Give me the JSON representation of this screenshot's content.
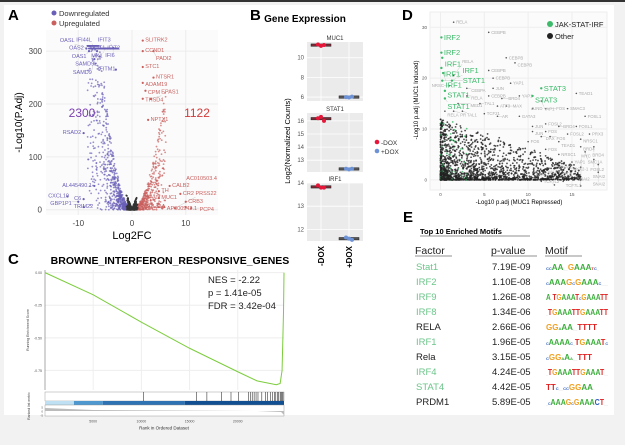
{
  "chart_data": [
    {
      "panel": "A",
      "type": "scatter",
      "xlabel": "Log2FC",
      "ylabel": "-Log10(P.Adj)",
      "xticks": [
        -10,
        0,
        10
      ],
      "yticks": [
        0,
        100,
        200,
        300
      ],
      "xlim": [
        -16,
        16
      ],
      "ylim": [
        -10,
        340
      ],
      "legend": [
        "Downregulated",
        "Upregulated"
      ],
      "legend_placement": "top-left",
      "colors": {
        "Downregulated": "#6a5fb8",
        "Upregulated": "#c9605e",
        "NS": "#333333"
      },
      "counts": {
        "down": "2300",
        "up": "1122"
      },
      "labeled_down": [
        {
          "gene": "IFIT1",
          "x": -4.5,
          "y": 305
        },
        {
          "gene": "IFIT3",
          "x": -3.5,
          "y": 305
        },
        {
          "gene": "MX1",
          "x": -5,
          "y": 305
        },
        {
          "gene": "IFIT2",
          "x": -4,
          "y": 305
        },
        {
          "gene": "IFI6",
          "x": -3.5,
          "y": 306
        },
        {
          "gene": "OAS2",
          "x": -8.5,
          "y": 305
        },
        {
          "gene": "OAS1",
          "x": -8,
          "y": 300
        },
        {
          "gene": "IFI44L",
          "x": -7,
          "y": 305
        },
        {
          "gene": "SAMD9L",
          "x": -6,
          "y": 290
        },
        {
          "gene": "SAMD9",
          "x": -7,
          "y": 285
        },
        {
          "gene": "OASL",
          "x": -6.5,
          "y": 300
        },
        {
          "gene": "IFITM1",
          "x": -3,
          "y": 265
        },
        {
          "gene": "RSAD2",
          "x": -9,
          "y": 145
        },
        {
          "gene": "AL445490.1",
          "x": -7,
          "y": 45
        },
        {
          "gene": "CXCL10",
          "x": -12,
          "y": 25
        },
        {
          "gene": "C6",
          "x": -9,
          "y": 20
        },
        {
          "gene": "GBP1P1",
          "x": -10,
          "y": 15
        },
        {
          "gene": "TRIM22",
          "x": -9,
          "y": 5
        }
      ],
      "labeled_up": [
        {
          "gene": "SLITRK2",
          "x": 2,
          "y": 320
        },
        {
          "gene": "CCND1",
          "x": 2,
          "y": 300
        },
        {
          "gene": "PADI2",
          "x": 4,
          "y": 300
        },
        {
          "gene": "STC1",
          "x": 2,
          "y": 270
        },
        {
          "gene": "NTSR1",
          "x": 4,
          "y": 250
        },
        {
          "gene": "ADAM19",
          "x": 2,
          "y": 240
        },
        {
          "gene": "CPM",
          "x": 2.5,
          "y": 225
        },
        {
          "gene": "THSD4",
          "x": 2,
          "y": 210
        },
        {
          "gene": "EPAS1",
          "x": 3.5,
          "y": 210
        },
        {
          "gene": "NPTX1",
          "x": 3,
          "y": 170
        },
        {
          "gene": "CALB2",
          "x": 7,
          "y": 45
        },
        {
          "gene": "TH",
          "x": 5,
          "y": 35
        },
        {
          "gene": "CR2",
          "x": 9,
          "y": 30
        },
        {
          "gene": "MUC1",
          "x": 5,
          "y": 22
        },
        {
          "gene": "CRB3",
          "x": 10,
          "y": 15
        },
        {
          "gene": "AP000942.1",
          "x": 6,
          "y": 5
        },
        {
          "gene": "AC010503.4",
          "x": 10,
          "y": 5
        },
        {
          "gene": "BCL11A",
          "x": 5,
          "y": 5
        },
        {
          "gene": "PRSS22",
          "x": 8,
          "y": 3
        },
        {
          "gene": "PCP4",
          "x": 11,
          "y": 3
        }
      ]
    },
    {
      "panel": "B",
      "type": "scatter",
      "title": "Gene Expression",
      "ylabel": "Log2(Normalized Counts)",
      "categories": [
        "-DOX",
        "+DOX"
      ],
      "legend": [
        "-DOX",
        "+DOX"
      ],
      "legend_placement": "right",
      "colors": {
        "-DOX": "#e8173a",
        "+DOX": "#6d93d6"
      },
      "facets": [
        {
          "gene": "MUC1",
          "yticks": [
            6,
            8,
            10
          ],
          "ylim": [
            5.6,
            11.6
          ],
          "minus": [
            11.35,
            11.2,
            11.3
          ],
          "plus": [
            6.0,
            5.95,
            6.05
          ]
        },
        {
          "gene": "STAT1",
          "yticks": [
            13,
            14,
            15,
            16
          ],
          "ylim": [
            12.1,
            16.6
          ],
          "minus": [
            16.2,
            16.3,
            16.0
          ],
          "plus": [
            12.35,
            12.3,
            12.35
          ]
        },
        {
          "gene": "IRF1",
          "yticks": [
            12,
            13,
            14
          ],
          "ylim": [
            11.5,
            14.0
          ],
          "minus": [
            13.9,
            13.8,
            13.8
          ],
          "plus": [
            11.65,
            11.6,
            11.55
          ]
        }
      ]
    },
    {
      "panel": "C",
      "type": "line",
      "title": "BROWNE_INTERFERON_RESPONSIVE_GENES",
      "xlabel": "Rank in Ordered Dataset",
      "ylabel": "Running Enrichment Score",
      "ylabel2": "Ranked list metric",
      "xticks": [
        5000,
        10000,
        15000,
        20000
      ],
      "yticks": [
        0.0,
        -0.25,
        -0.5,
        -0.75
      ],
      "ytick_labels": [
        "0.00",
        "-0.25",
        "-0.50",
        "-0.75"
      ],
      "xlim": [
        0,
        24800
      ],
      "ylim": [
        -0.9,
        0.02
      ],
      "line_color": "#7ccd3c",
      "points": [
        [
          0,
          0
        ],
        [
          5000,
          -0.17
        ],
        [
          10000,
          -0.38
        ],
        [
          15000,
          -0.58
        ],
        [
          20000,
          -0.76
        ],
        [
          22000,
          -0.83
        ],
        [
          24000,
          -0.86
        ],
        [
          24400,
          -0.85
        ],
        [
          24600,
          -0.75
        ],
        [
          24750,
          -0.3
        ],
        [
          24800,
          0.0
        ]
      ],
      "hits": [
        10200,
        15700,
        16800,
        18300,
        19300,
        20100,
        21100,
        21300,
        21500,
        21700,
        21900,
        22100,
        22500,
        22900,
        23100,
        23400,
        23600,
        23800,
        23950,
        24100,
        24250,
        24400,
        24500,
        24600,
        24700
      ],
      "stats": {
        "nes": "NES = -2.22",
        "p": "p = 1.41e-05",
        "fdr": "FDR = 3.42e-04"
      },
      "metric_ticks": [
        "5",
        "0",
        "-5"
      ]
    },
    {
      "panel": "D",
      "type": "scatter",
      "xlabel": "-Log10 p.adj (MUC1 Repressed)",
      "ylabel": "-Log10 p.adj (MUC1 Induced)",
      "xticks": [
        0,
        5,
        10,
        15
      ],
      "yticks": [
        0,
        10,
        20,
        30
      ],
      "xlim": [
        -1.2,
        19
      ],
      "ylim": [
        -2,
        33
      ],
      "legend": [
        "JAK-STAT-IRF",
        "Other"
      ],
      "legend_placement": "top-right",
      "colors": {
        "JAK-STAT-IRF": "#3dbb6b",
        "Other": "#222222",
        "label_other": "#aaaaaa"
      },
      "labeled_jak": [
        {
          "tf": "IRF2",
          "x": 0.1,
          "y": 28
        },
        {
          "tf": "IRF2",
          "x": 0.1,
          "y": 25
        },
        {
          "tf": "IRF1",
          "x": 0.2,
          "y": 24
        },
        {
          "tf": "IRF1",
          "x": 0.1,
          "y": 22
        },
        {
          "tf": "IRF1",
          "x": 0.3,
          "y": 21
        },
        {
          "tf": "STAT1",
          "x": 0.2,
          "y": 19.5
        },
        {
          "tf": "IRF1",
          "x": 1.3,
          "y": 19.5
        },
        {
          "tf": "STAT1",
          "x": 0.5,
          "y": 17.5
        },
        {
          "tf": "STAT1",
          "x": 0.5,
          "y": 16
        },
        {
          "tf": "STAT3",
          "x": 11.5,
          "y": 18
        },
        {
          "tf": "STAT3",
          "x": 10.5,
          "y": 16.5
        }
      ],
      "labeled_other": [
        {
          "tf": "RELA",
          "x": 1.5,
          "y": 31
        },
        {
          "tf": "CEBPB",
          "x": 5.5,
          "y": 29
        },
        {
          "tf": "CEBPB",
          "x": 7.5,
          "y": 24
        },
        {
          "tf": "CEBPB",
          "x": 8.5,
          "y": 23
        },
        {
          "tf": "CEBPB",
          "x": 5.5,
          "y": 21.5
        },
        {
          "tf": "RELA",
          "x": 1.5,
          "y": 20.5
        },
        {
          "tf": "CEBPB",
          "x": 6,
          "y": 20
        },
        {
          "tf": "YAP1",
          "x": 8,
          "y": 19
        },
        {
          "tf": "NRSC",
          "x": 1,
          "y": 18.5
        },
        {
          "tf": "CEBPA",
          "x": 3,
          "y": 18
        },
        {
          "tf": "JUN",
          "x": 6,
          "y": 18
        },
        {
          "tf": "RELA",
          "x": 3,
          "y": 16.5
        },
        {
          "tf": "CEBPB",
          "x": 5.5,
          "y": 16.5
        },
        {
          "tf": "BRD4",
          "x": 7,
          "y": 16
        },
        {
          "tf": "YAP1",
          "x": 9,
          "y": 16.5
        },
        {
          "tf": "TEAD1",
          "x": 15.5,
          "y": 17
        },
        {
          "tf": "MED1",
          "x": 2,
          "y": 15
        },
        {
          "tf": "TAL1",
          "x": 4.5,
          "y": 15
        },
        {
          "tf": "ATF3",
          "x": 6.5,
          "y": 14.5
        },
        {
          "tf": "MAX",
          "x": 7.5,
          "y": 14.5
        },
        {
          "tf": "YAP1",
          "x": 11.5,
          "y": 15.5
        },
        {
          "tf": "RELA",
          "x": 0.5,
          "y": 13.5
        },
        {
          "tf": "PR",
          "x": 1.5,
          "y": 13.5
        },
        {
          "tf": "TAL1",
          "x": 2.5,
          "y": 13.5
        },
        {
          "tf": "TCF21",
          "x": 5,
          "y": 13
        },
        {
          "tf": "AR",
          "x": 6.5,
          "y": 12.5
        },
        {
          "tf": "GATA3",
          "x": 9,
          "y": 12.5
        },
        {
          "tf": "JUND",
          "x": 10.5,
          "y": 14
        },
        {
          "tf": "FOS",
          "x": 12,
          "y": 14
        },
        {
          "tf": "SMAC3",
          "x": 14.5,
          "y": 14
        },
        {
          "tf": "FOSL1",
          "x": 16.5,
          "y": 12.5
        },
        {
          "tf": "FOSL2",
          "x": 12,
          "y": 11
        },
        {
          "tf": "JUN",
          "x": 10.5,
          "y": 10.5
        },
        {
          "tf": "BRD4",
          "x": 13.5,
          "y": 10.5
        },
        {
          "tf": "FOSL1",
          "x": 15.5,
          "y": 10.5
        },
        {
          "tf": "JUN",
          "x": 10.5,
          "y": 9.5
        },
        {
          "tf": "FOS",
          "x": 12,
          "y": 9.5
        },
        {
          "tf": "DAX",
          "x": 11.5,
          "y": 8.5
        },
        {
          "tf": "FOS",
          "x": 12.5,
          "y": 8.5
        },
        {
          "tf": "FOSL2",
          "x": 14.5,
          "y": 9
        },
        {
          "tf": "PRX3",
          "x": 17,
          "y": 9
        },
        {
          "tf": "NRSC1",
          "x": 16,
          "y": 8
        },
        {
          "tf": "FOS",
          "x": 10,
          "y": 7.5
        },
        {
          "tf": "TEAD1",
          "x": 13.5,
          "y": 7.5
        },
        {
          "tf": "BRD4",
          "x": 16,
          "y": 6.5
        },
        {
          "tf": "BRD4",
          "x": 17.5,
          "y": 6.5
        },
        {
          "tf": "FOS",
          "x": 12,
          "y": 6
        },
        {
          "tf": "SMC1A",
          "x": 16.5,
          "y": 5.5
        },
        {
          "tf": "NRSC1",
          "x": 13.5,
          "y": 5
        },
        {
          "tf": "FOSL2",
          "x": 17.5,
          "y": 4
        },
        {
          "tf": "YAP1",
          "x": 15,
          "y": 3.5
        },
        {
          "tf": "SNAI2",
          "x": 18,
          "y": 3
        },
        {
          "tf": "SNAI2",
          "x": 13.5,
          "y": 2.5
        },
        {
          "tf": "NKX2-1",
          "x": 16,
          "y": 2.5
        },
        {
          "tf": "SNAI2",
          "x": 18,
          "y": 1.5
        },
        {
          "tf": "MAX",
          "x": 12,
          "y": 1.5
        },
        {
          "tf": "ATF3",
          "x": 13.5,
          "y": 1.5
        },
        {
          "tf": "SNAI2",
          "x": 16,
          "y": 0.2
        },
        {
          "tf": "TCF7L2",
          "x": 11.5,
          "y": -0.3
        },
        {
          "tf": "TCF7L1",
          "x": 14,
          "y": -0.3
        },
        {
          "tf": "MYC",
          "x": 13,
          "y": -1
        },
        {
          "tf": "MYC",
          "x": 16,
          "y": -1.2
        }
      ]
    }
  ],
  "panels": {
    "a": "A",
    "b": "B",
    "c": "C",
    "d": "D",
    "e": "E"
  },
  "motifs": {
    "title": "Top 10 Enriched Motifs",
    "headers": {
      "factor": "Factor",
      "pvalue": "p-value",
      "motif": "Motif"
    },
    "colors": {
      "jak": "#6cc58a",
      "other": "#222222"
    },
    "rows": [
      {
        "factor": "Stat1",
        "pvalue": "7.19E-09",
        "jak": true,
        "motif": "ccAA..GAAAtc."
      },
      {
        "factor": "IRF2",
        "pvalue": "1.10E-08",
        "jak": true,
        "motif": "cAAAGcGAAAc..."
      },
      {
        "factor": "IRF9",
        "pvalue": "1.26E-08",
        "jak": true,
        "motif": "A.TGAAATcGAAATT"
      },
      {
        "factor": "IRF8",
        "pvalue": "1.34E-06",
        "jak": true,
        "motif": ".TGAAATTGAAATT"
      },
      {
        "factor": "RELA",
        "pvalue": "2.66E-06",
        "jak": false,
        "motif": "GGaAA..TTTT"
      },
      {
        "factor": "IRF1",
        "pvalue": "1.96E-05",
        "jak": true,
        "motif": "cAAAAc.TGAAATc"
      },
      {
        "factor": "Rela",
        "pvalue": "3.15E-05",
        "jak": false,
        "motif": "cGGaAa..TTT"
      },
      {
        "factor": "IRF4",
        "pvalue": "4.24E-05",
        "jak": true,
        "motif": ".TGAAATTGAAAT.."
      },
      {
        "factor": "STAT4",
        "pvalue": "4.42E-05",
        "jak": true,
        "motif": "TTc..ccGGAA"
      },
      {
        "factor": "PRDM1",
        "pvalue": "5.89E-05",
        "jak": false,
        "motif": ".cAAAGcGAAACT.."
      }
    ]
  }
}
